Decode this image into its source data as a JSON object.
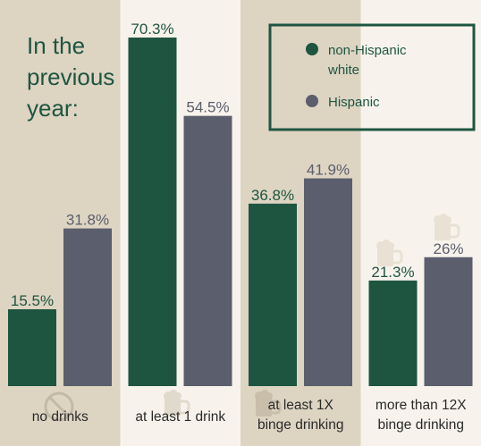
{
  "chart_data": {
    "type": "bar",
    "title_lines": [
      "In the",
      "previous",
      "year:"
    ],
    "categories": [
      [
        "no drinks"
      ],
      [
        "at least 1 drink"
      ],
      [
        "at least 1X",
        "binge drinking"
      ],
      [
        "more than 12X",
        "binge drinking"
      ]
    ],
    "series": [
      {
        "name_lines": [
          "non-Hispanic",
          "white"
        ],
        "values": [
          15.5,
          70.3,
          36.8,
          21.3
        ],
        "labels": [
          "15.5%",
          "70.3%",
          "36.8%",
          "21.3%"
        ],
        "color": "#1e5541"
      },
      {
        "name_lines": [
          "Hispanic"
        ],
        "values": [
          31.8,
          54.5,
          41.9,
          26
        ],
        "labels": [
          "31.8%",
          "54.5%",
          "41.9%",
          "26%"
        ],
        "color": "#5b5e6d"
      }
    ],
    "ylim": [
      0,
      70.3
    ],
    "legend_position": "top-right",
    "grid": false,
    "colors": {
      "panel_dark": "#ddd4c2",
      "panel_light": "#f7f3ec",
      "text": "#1e5541",
      "legend_border": "#1e5541"
    },
    "icons": [
      "no-drink-icon",
      "beer-mug-icon",
      "beer-mug-icon",
      "beer-mug-icon"
    ]
  }
}
